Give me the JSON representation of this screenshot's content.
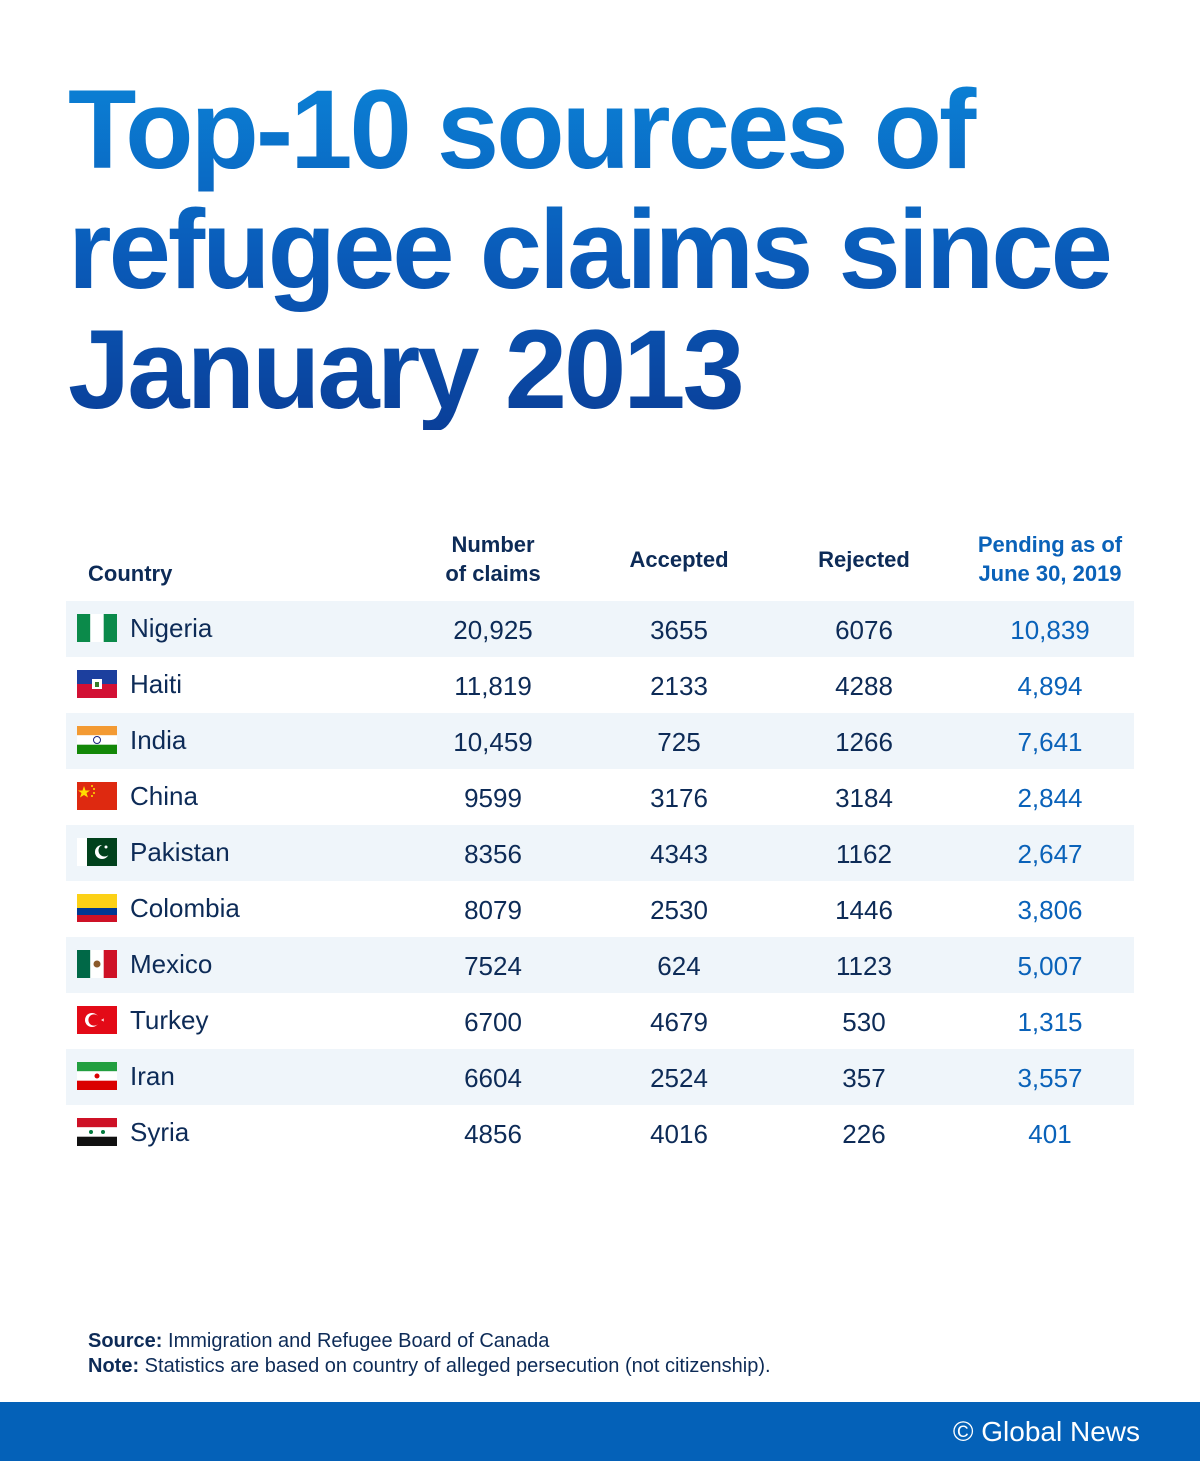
{
  "title": {
    "line1": "Top-10 sources of",
    "line2": "refugee claims since",
    "line3": "January 2013"
  },
  "colors": {
    "title_top": "#0b82d6",
    "title_bottom": "#0a3f99",
    "text": "#0d2b57",
    "pending": "#0a62b9",
    "stripe": "#eff5fa",
    "footer_bar": "#0461b8"
  },
  "chart_data": {
    "type": "table",
    "columns": [
      "Country",
      "Number of claims",
      "Accepted",
      "Rejected",
      "Pending as of June 30, 2019"
    ],
    "rows": [
      {
        "country": "Nigeria",
        "flag": "nigeria-flag-icon",
        "claims": "20,925",
        "accepted": "3655",
        "rejected": "6076",
        "pending": "10,839"
      },
      {
        "country": "Haiti",
        "flag": "haiti-flag-icon",
        "claims": "11,819",
        "accepted": "2133",
        "rejected": "4288",
        "pending": "4,894"
      },
      {
        "country": "India",
        "flag": "india-flag-icon",
        "claims": "10,459",
        "accepted": "725",
        "rejected": "1266",
        "pending": "7,641"
      },
      {
        "country": "China",
        "flag": "china-flag-icon",
        "claims": "9599",
        "accepted": "3176",
        "rejected": "3184",
        "pending": "2,844"
      },
      {
        "country": "Pakistan",
        "flag": "pakistan-flag-icon",
        "claims": "8356",
        "accepted": "4343",
        "rejected": "1162",
        "pending": "2,647"
      },
      {
        "country": "Colombia",
        "flag": "colombia-flag-icon",
        "claims": "8079",
        "accepted": "2530",
        "rejected": "1446",
        "pending": "3,806"
      },
      {
        "country": "Mexico",
        "flag": "mexico-flag-icon",
        "claims": "7524",
        "accepted": "624",
        "rejected": "1123",
        "pending": "5,007"
      },
      {
        "country": "Turkey",
        "flag": "turkey-flag-icon",
        "claims": "6700",
        "accepted": "4679",
        "rejected": "530",
        "pending": "1,315"
      },
      {
        "country": "Iran",
        "flag": "iran-flag-icon",
        "claims": "6604",
        "accepted": "2524",
        "rejected": "357",
        "pending": "3,557"
      },
      {
        "country": "Syria",
        "flag": "syria-flag-icon",
        "claims": "4856",
        "accepted": "4016",
        "rejected": "226",
        "pending": "401"
      }
    ]
  },
  "headers": {
    "country": "Country",
    "claims_1": "Number",
    "claims_2": "of claims",
    "accepted": "Accepted",
    "rejected": "Rejected",
    "pending_1": "Pending as of",
    "pending_2": "June 30, 2019"
  },
  "footer": {
    "source_label": "Source:",
    "source_text": " Immigration and Refugee Board of Canada",
    "note_label": "Note:",
    "note_text": " Statistics are based on country of alleged persecution (not citizenship).",
    "brand": "© Global News"
  }
}
